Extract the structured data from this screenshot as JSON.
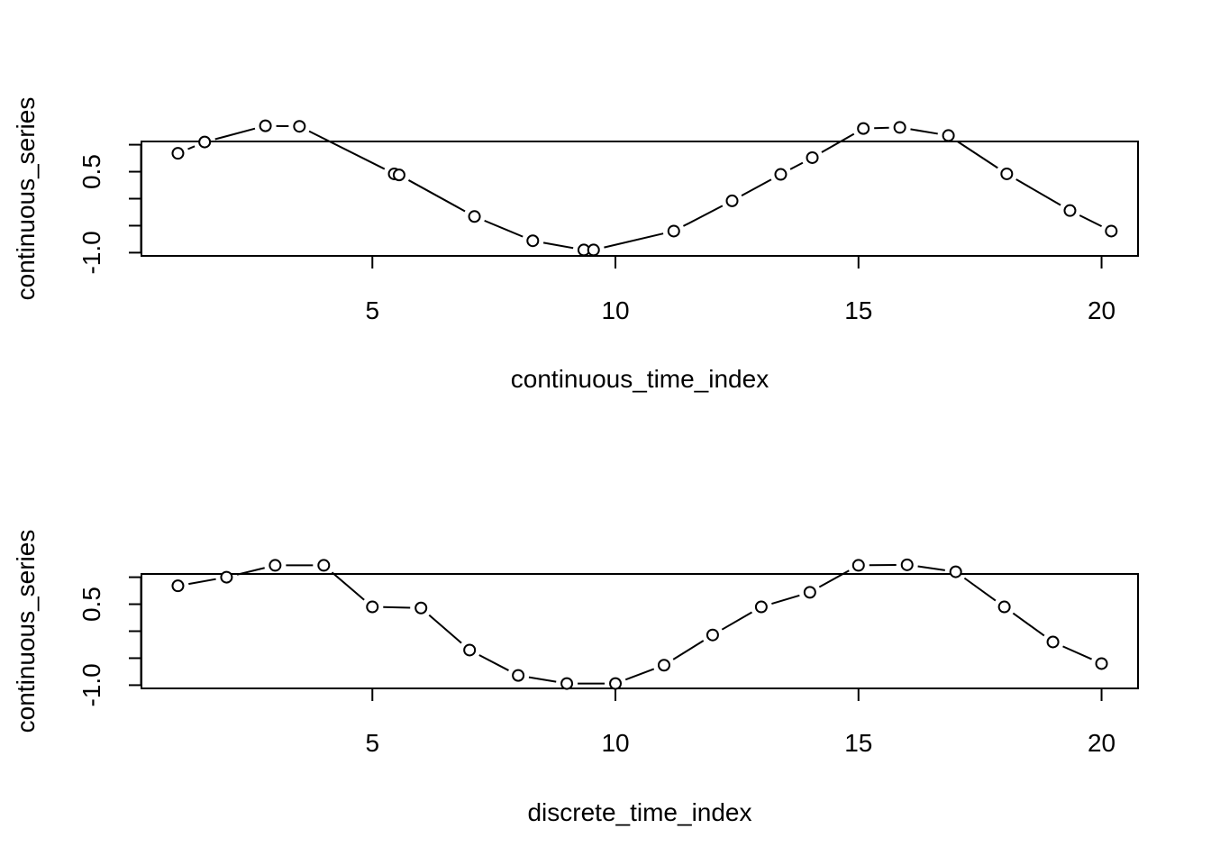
{
  "chart_data": [
    {
      "type": "line",
      "xlabel": "continuous_time_index",
      "ylabel": "continuous_series",
      "xlim": [
        0.25,
        20.75
      ],
      "ylim": [
        -1.06,
        1.06
      ],
      "x_ticks": [
        5,
        10,
        15,
        20
      ],
      "y_ticks": [
        -1.0,
        -0.5,
        0.0,
        0.5,
        1.0
      ],
      "y_tick_labels": [
        "-1.0",
        "",
        "",
        "0.5",
        ""
      ],
      "grid": false,
      "series": [
        {
          "x": [
            1.0,
            1.55,
            2.8,
            3.5,
            5.45,
            5.55,
            7.1,
            8.3,
            9.35,
            9.55,
            11.2,
            12.4,
            13.4,
            14.05,
            15.1,
            15.85,
            16.85,
            18.05,
            19.35,
            20.2
          ],
          "y": [
            0.84,
            1.05,
            1.35,
            1.34,
            0.46,
            0.44,
            -0.33,
            -0.78,
            -0.95,
            -0.95,
            -0.6,
            -0.04,
            0.45,
            0.76,
            1.3,
            1.32,
            1.17,
            0.46,
            -0.22,
            -0.6
          ]
        }
      ]
    },
    {
      "type": "line",
      "xlabel": "discrete_time_index",
      "ylabel": "continuous_series",
      "xlim": [
        0.25,
        20.75
      ],
      "ylim": [
        -1.06,
        1.06
      ],
      "x_ticks": [
        5,
        10,
        15,
        20
      ],
      "y_ticks": [
        -1.0,
        -0.5,
        0.0,
        0.5,
        1.0
      ],
      "y_tick_labels": [
        "-1.0",
        "",
        "",
        "0.5",
        ""
      ],
      "grid": false,
      "series": [
        {
          "x": [
            1,
            2,
            3,
            4,
            5,
            6,
            7,
            8,
            9,
            10,
            11,
            12,
            13,
            14,
            15,
            16,
            17,
            18,
            19,
            20
          ],
          "y": [
            0.84,
            1.0,
            1.22,
            1.22,
            0.45,
            0.43,
            -0.35,
            -0.82,
            -0.97,
            -0.97,
            -0.63,
            -0.07,
            0.45,
            0.72,
            1.22,
            1.23,
            1.1,
            0.45,
            -0.2,
            -0.6
          ]
        }
      ]
    }
  ]
}
